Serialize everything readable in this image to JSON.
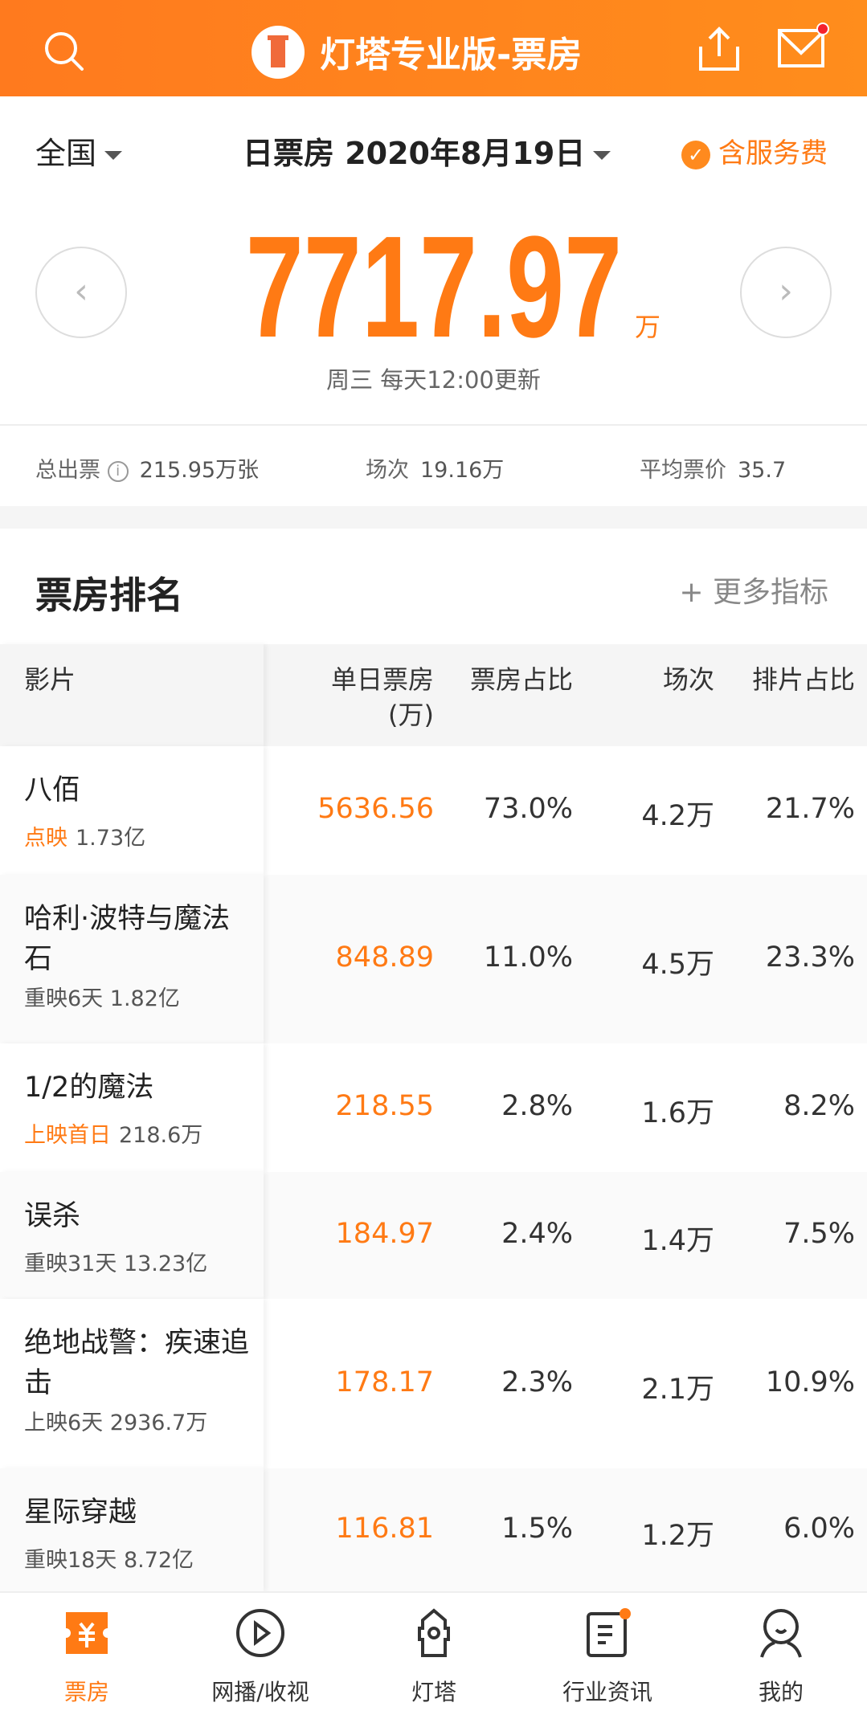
{
  "header": {
    "title": "灯塔专业版-票房",
    "icons": [
      "search-icon",
      "share-icon",
      "mail-icon"
    ]
  },
  "filters": {
    "region": "全国",
    "date": "日票房 2020年8月19日",
    "service_fee": "含服务费"
  },
  "summary": {
    "total": "7717.97",
    "unit": "万",
    "update": "周三 每天12:00更新",
    "prev": "‹",
    "next": "›"
  },
  "stats": [
    {
      "label": "总出票",
      "value": "215.95万张"
    },
    {
      "label": "场次",
      "value": "19.16万"
    },
    {
      "label": "平均票价",
      "value": "35.7"
    }
  ],
  "ranking": {
    "title": "票房排名",
    "more": "+ 更多指标",
    "headers": {
      "film": "影片",
      "daily": "单日票房",
      "daily_unit": "(万)",
      "share": "票房占比",
      "shows": "场次",
      "slot": "排片占比"
    },
    "rows": [
      {
        "name": "八佰",
        "tag": "点映",
        "info": "1.73亿",
        "daily": "5636.56",
        "share": "73.0%",
        "shows": "4.2万",
        "slot": "21.7%"
      },
      {
        "name": "哈利·波特与魔法石",
        "tag": "",
        "info": "重映6天 1.82亿",
        "daily": "848.89",
        "share": "11.0%",
        "shows": "4.5万",
        "slot": "23.3%"
      },
      {
        "name": "1/2的魔法",
        "tag": "上映首日",
        "info": "218.6万",
        "daily": "218.55",
        "share": "2.8%",
        "shows": "1.6万",
        "slot": "8.2%"
      },
      {
        "name": "误杀",
        "tag": "",
        "info": "重映31天 13.23亿",
        "daily": "184.97",
        "share": "2.4%",
        "shows": "1.4万",
        "slot": "7.5%"
      },
      {
        "name": "绝地战警：疾速追击",
        "tag": "",
        "info": "上映6天 2936.7万",
        "daily": "178.17",
        "share": "2.3%",
        "shows": "2.1万",
        "slot": "10.9%"
      },
      {
        "name": "星际穿越",
        "tag": "",
        "info": "重映18天 8.72亿",
        "daily": "116.81",
        "share": "1.5%",
        "shows": "1.2万",
        "slot": "6.0%"
      }
    ]
  },
  "tabbar": [
    {
      "label": "票房",
      "active": true
    },
    {
      "label": "网播/收视"
    },
    {
      "label": "灯塔"
    },
    {
      "label": "行业资讯"
    },
    {
      "label": "我的"
    }
  ],
  "colors": {
    "accent": "#ff7a14"
  }
}
